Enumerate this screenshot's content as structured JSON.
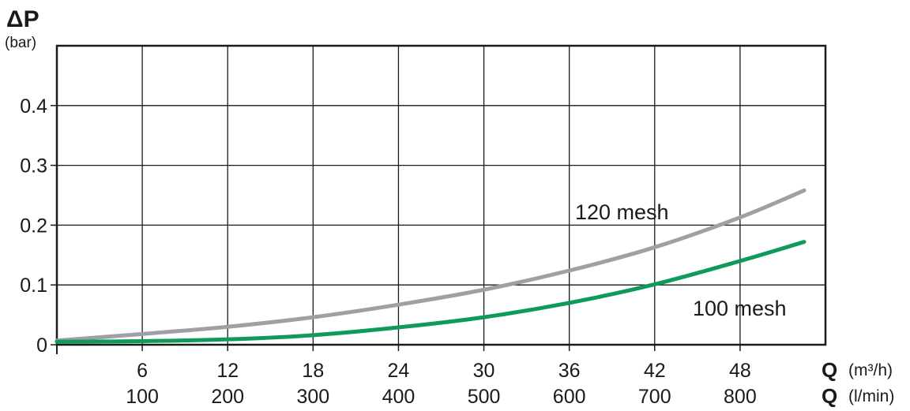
{
  "chart_data": {
    "type": "line",
    "ylabel": {
      "symbol": "ΔP",
      "unit": "(bar)"
    },
    "xlabel_primary": {
      "symbol": "Q",
      "unit": "(m³/h)"
    },
    "xlabel_secondary": {
      "symbol": "Q",
      "unit": "(l/min)"
    },
    "xlim": [
      0,
      54
    ],
    "ylim": [
      0,
      0.5
    ],
    "y_ticks": [
      0,
      0.1,
      0.2,
      0.3,
      0.4
    ],
    "y_tick_labels": [
      "0",
      "0.1",
      "0.2",
      "0.3",
      "0.4"
    ],
    "x_ticks": [
      6,
      12,
      18,
      24,
      30,
      36,
      42,
      48
    ],
    "x_tick_labels_primary": [
      "6",
      "12",
      "18",
      "24",
      "30",
      "36",
      "42",
      "48"
    ],
    "x_tick_labels_secondary": [
      "100",
      "200",
      "300",
      "400",
      "500",
      "600",
      "700",
      "800"
    ],
    "grid": true,
    "series": [
      {
        "name": "120 mesh",
        "color": "#a0a0a4",
        "x": [
          0,
          6,
          12,
          18,
          24,
          30,
          36,
          42,
          48,
          52.5
        ],
        "y": [
          0.007,
          0.018,
          0.03,
          0.046,
          0.067,
          0.092,
          0.124,
          0.163,
          0.213,
          0.258
        ]
      },
      {
        "name": "100 mesh",
        "color": "#0f9a5a",
        "x": [
          0,
          6,
          12,
          18,
          24,
          30,
          36,
          42,
          48,
          52.5
        ],
        "y": [
          0.005,
          0.006,
          0.009,
          0.016,
          0.029,
          0.046,
          0.07,
          0.101,
          0.14,
          0.172
        ]
      }
    ]
  }
}
